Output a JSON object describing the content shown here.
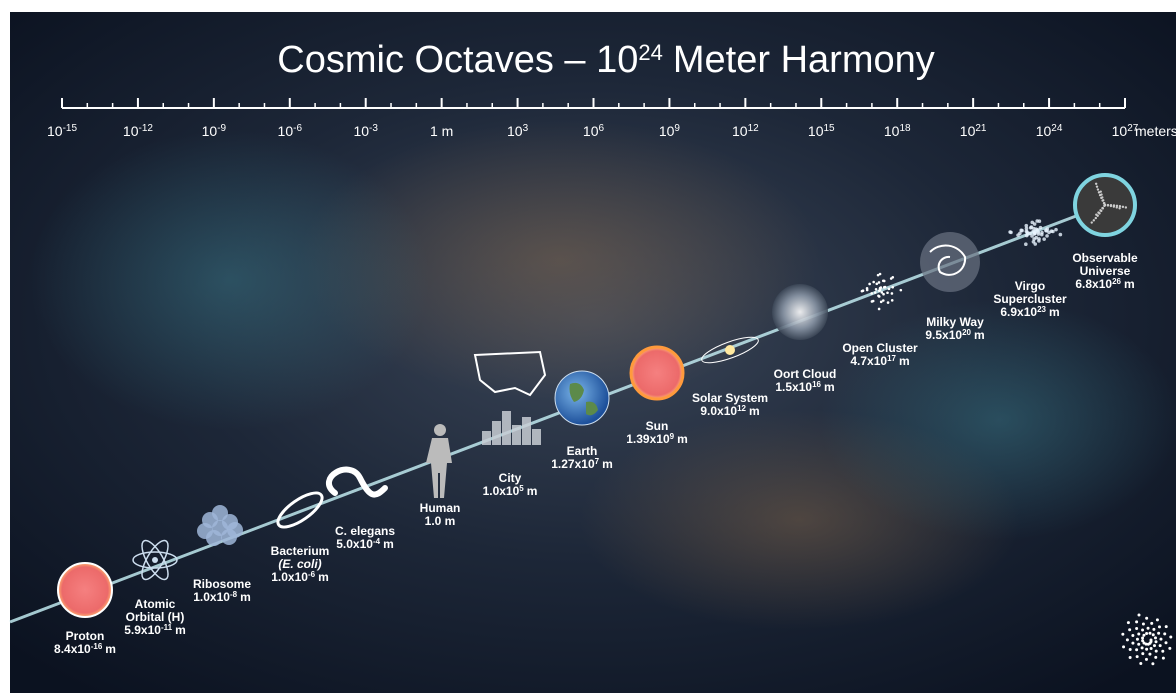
{
  "header": {
    "title": {
      "prefix": "Cosmic Octaves – 10",
      "exponent": "24",
      "suffix": "Meter Harmony"
    }
  },
  "axis": {
    "ticks": [
      {
        "base": "10",
        "exponent": "-15"
      },
      {
        "base": "10",
        "exponent": "-12"
      },
      {
        "base": "10",
        "exponent": "-9"
      },
      {
        "base": "10",
        "exponent": "-6"
      },
      {
        "base": "10",
        "exponent": "-3"
      },
      {
        "label": "1 m"
      },
      {
        "base": "10",
        "exponent": "3"
      },
      {
        "base": "10",
        "exponent": "6"
      },
      {
        "base": "10",
        "exponent": "9"
      },
      {
        "base": "10",
        "exponent": "12"
      },
      {
        "base": "10",
        "exponent": "15"
      },
      {
        "base": "10",
        "exponent": "18"
      },
      {
        "base": "10",
        "exponent": "21"
      },
      {
        "base": "10",
        "exponent": "24"
      },
      {
        "base": "10",
        "exponent": "27"
      }
    ],
    "unit": "meters"
  },
  "items": [
    {
      "name": [
        "Proton"
      ],
      "size": {
        "mantissa": "8.4x10",
        "exponent": "-16",
        "unit": "m"
      }
    },
    {
      "name": [
        "Atomic",
        "Orbital (H)"
      ],
      "size": {
        "mantissa": "5.9x10",
        "exponent": "-11",
        "unit": "m"
      }
    },
    {
      "name": [
        "Ribosome"
      ],
      "size": {
        "mantissa": "1.0x10",
        "exponent": "-8",
        "unit": "m"
      }
    },
    {
      "name": [
        "Bacterium"
      ],
      "qualifier": "(E. coli)",
      "size": {
        "mantissa": "1.0x10",
        "exponent": "-6",
        "unit": "m"
      }
    },
    {
      "name": [
        "C. elegans"
      ],
      "size": {
        "mantissa": "5.0x10",
        "exponent": "-4",
        "unit": "m"
      }
    },
    {
      "name": [
        "Human"
      ],
      "size": {
        "text": "1.0 m"
      }
    },
    {
      "name": [
        "City"
      ],
      "size": {
        "mantissa": "1.0x10",
        "exponent": "5",
        "unit": "m"
      }
    },
    {
      "name": [
        "Earth"
      ],
      "size": {
        "mantissa": "1.27x10",
        "exponent": "7",
        "unit": "m"
      }
    },
    {
      "name": [
        "Sun"
      ],
      "size": {
        "mantissa": "1.39x10",
        "exponent": "9",
        "unit": "m"
      }
    },
    {
      "name": [
        "Solar System"
      ],
      "size": {
        "mantissa": "9.0x10",
        "exponent": "12",
        "unit": "m"
      }
    },
    {
      "name": [
        "Oort Cloud"
      ],
      "size": {
        "mantissa": "1.5x10",
        "exponent": "16",
        "unit": "m"
      }
    },
    {
      "name": [
        "Open Cluster"
      ],
      "size": {
        "mantissa": "4.7x10",
        "exponent": "17",
        "unit": "m"
      }
    },
    {
      "name": [
        "Milky Way"
      ],
      "size": {
        "mantissa": "9.5x10",
        "exponent": "20",
        "unit": "m"
      }
    },
    {
      "name": [
        "Virgo",
        "Supercluster"
      ],
      "size": {
        "mantissa": "6.9x10",
        "exponent": "23",
        "unit": "m"
      }
    },
    {
      "name": [
        "Observable",
        "Universe"
      ],
      "size": {
        "mantissa": "6.8x10",
        "exponent": "26",
        "unit": "m"
      }
    }
  ]
}
